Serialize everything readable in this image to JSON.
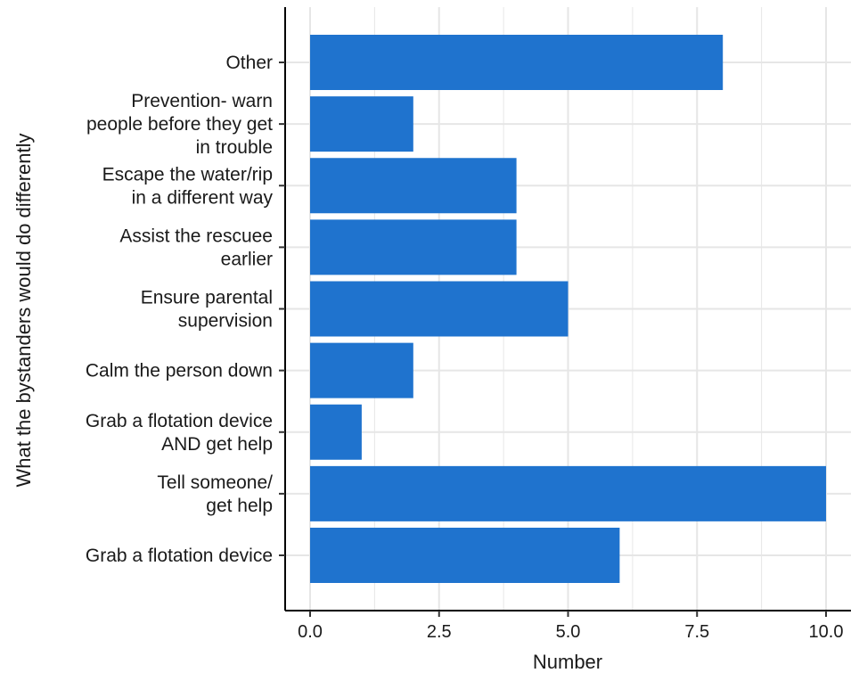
{
  "chart_data": {
    "type": "bar",
    "orientation": "horizontal",
    "xlabel": "Number",
    "ylabel": "What the bystanders would do differently",
    "xlim": [
      0,
      10
    ],
    "xticks": [
      "0.0",
      "2.5",
      "5.0",
      "7.5",
      "10.0"
    ],
    "categories": [
      [
        "Other"
      ],
      [
        "Prevention- warn",
        "people before they get",
        "in trouble"
      ],
      [
        "Escape the water/rip",
        "in a different way"
      ],
      [
        "Assist the rescuee",
        "earlier"
      ],
      [
        "Ensure parental",
        "supervision"
      ],
      [
        "Calm the person down"
      ],
      [
        "Grab a flotation device",
        "AND get help"
      ],
      [
        "Tell someone/",
        "get help"
      ],
      [
        "Grab a flotation device"
      ]
    ],
    "values": [
      8,
      2,
      4,
      4,
      5,
      2,
      1,
      10,
      6
    ],
    "grid": true,
    "bar_color": "#1f73ce"
  }
}
